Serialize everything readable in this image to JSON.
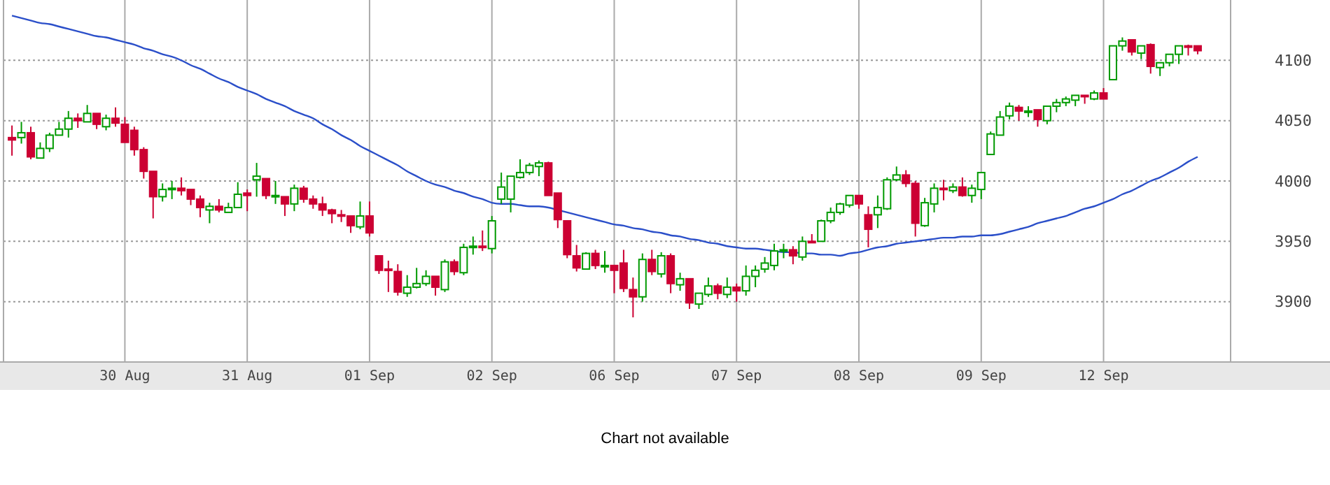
{
  "chart_data": {
    "type": "candlestick",
    "categories": [
      null,
      null,
      null,
      null,
      null,
      null,
      null,
      null,
      null,
      null,
      null,
      null,
      "30 Aug",
      null,
      null,
      null,
      null,
      null,
      null,
      null,
      null,
      null,
      null,
      null,
      null,
      "31 Aug",
      null,
      null,
      null,
      null,
      null,
      null,
      null,
      null,
      null,
      null,
      null,
      null,
      "01 Sep",
      null,
      null,
      null,
      null,
      null,
      null,
      null,
      null,
      null,
      null,
      null,
      null,
      "02 Sep",
      null,
      null,
      null,
      null,
      null,
      null,
      null,
      null,
      null,
      null,
      null,
      null,
      "06 Sep",
      null,
      null,
      null,
      null,
      null,
      null,
      null,
      null,
      null,
      null,
      null,
      null,
      "07 Sep",
      null,
      null,
      null,
      null,
      null,
      null,
      null,
      null,
      null,
      null,
      null,
      null,
      "08 Sep",
      null,
      null,
      null,
      null,
      null,
      null,
      null,
      null,
      null,
      null,
      null,
      null,
      "09 Sep",
      null,
      null,
      null,
      null,
      null,
      null,
      null,
      null,
      null,
      null,
      null,
      null,
      "12 Sep",
      null,
      null,
      null,
      null,
      null,
      null,
      null,
      null,
      null,
      null
    ],
    "ohlc": [
      [
        4036,
        4046,
        4021,
        4034
      ],
      [
        4036,
        4049,
        4031,
        4040
      ],
      [
        4040,
        4045,
        4018,
        4020
      ],
      [
        4019,
        4032,
        4019,
        4027
      ],
      [
        4027,
        4040,
        4024,
        4038
      ],
      [
        4038,
        4049,
        4038,
        4043
      ],
      [
        4043,
        4058,
        4036,
        4052
      ],
      [
        4052,
        4056,
        4044,
        4050
      ],
      [
        4049,
        4063,
        4049,
        4056
      ],
      [
        4056,
        4056,
        4043,
        4047
      ],
      [
        4045,
        4055,
        4042,
        4052
      ],
      [
        4052,
        4061,
        4045,
        4048
      ],
      [
        4047,
        4053,
        4032,
        4032
      ],
      [
        4042,
        4045,
        4021,
        4026
      ],
      [
        4026,
        4028,
        4002,
        4008
      ],
      [
        4008,
        4008,
        3969,
        3987
      ],
      [
        3987,
        3998,
        3983,
        3993
      ],
      [
        3993,
        4000,
        3985,
        3994
      ],
      [
        3994,
        4003,
        3988,
        3992
      ],
      [
        3993,
        3993,
        3980,
        3985
      ],
      [
        3985,
        3988,
        3970,
        3978
      ],
      [
        3976,
        3982,
        3965,
        3979
      ],
      [
        3979,
        3985,
        3974,
        3976
      ],
      [
        3974,
        3982,
        3974,
        3978
      ],
      [
        3978,
        3999,
        3978,
        3989
      ],
      [
        3990,
        3993,
        3975,
        3988
      ],
      [
        4001,
        4015,
        3987,
        4004
      ],
      [
        4002,
        4002,
        3985,
        3988
      ],
      [
        3987,
        4000,
        3981,
        3988
      ],
      [
        3987,
        3987,
        3971,
        3981
      ],
      [
        3981,
        3997,
        3975,
        3994
      ],
      [
        3994,
        3996,
        3982,
        3985
      ],
      [
        3985,
        3988,
        3977,
        3981
      ],
      [
        3981,
        3987,
        3971,
        3976
      ],
      [
        3976,
        3977,
        3965,
        3973
      ],
      [
        3972,
        3976,
        3966,
        3971
      ],
      [
        3971,
        3971,
        3957,
        3963
      ],
      [
        3962,
        3983,
        3960,
        3971
      ],
      [
        3971,
        3983,
        3954,
        3957
      ],
      [
        3938,
        3938,
        3923,
        3926
      ],
      [
        3927,
        3934,
        3908,
        3926
      ],
      [
        3925,
        3931,
        3905,
        3908
      ],
      [
        3907,
        3922,
        3904,
        3912
      ],
      [
        3912,
        3928,
        3911,
        3915
      ],
      [
        3915,
        3926,
        3913,
        3921
      ],
      [
        3921,
        3921,
        3905,
        3912
      ],
      [
        3910,
        3935,
        3908,
        3933
      ],
      [
        3933,
        3935,
        3922,
        3925
      ],
      [
        3924,
        3948,
        3922,
        3945
      ],
      [
        3945,
        3954,
        3939,
        3946
      ],
      [
        3946,
        3959,
        3942,
        3945
      ],
      [
        3944,
        3971,
        3940,
        3967
      ],
      [
        3985,
        4007,
        3981,
        3995
      ],
      [
        3985,
        4004,
        3974,
        4004
      ],
      [
        4003,
        4018,
        4002,
        4007
      ],
      [
        4007,
        4015,
        4005,
        4013
      ],
      [
        4012,
        4017,
        4004,
        4015
      ],
      [
        4015,
        4016,
        3988,
        3988
      ],
      [
        3990,
        3990,
        3961,
        3968
      ],
      [
        3967,
        3967,
        3936,
        3939
      ],
      [
        3938,
        3947,
        3925,
        3928
      ],
      [
        3927,
        3941,
        3927,
        3940
      ],
      [
        3940,
        3943,
        3927,
        3930
      ],
      [
        3929,
        3942,
        3924,
        3930
      ],
      [
        3930,
        3930,
        3907,
        3926
      ],
      [
        3932,
        3943,
        3908,
        3911
      ],
      [
        3910,
        3920,
        3887,
        3904
      ],
      [
        3904,
        3940,
        3900,
        3935
      ],
      [
        3935,
        3943,
        3922,
        3925
      ],
      [
        3923,
        3941,
        3920,
        3938
      ],
      [
        3938,
        3940,
        3907,
        3915
      ],
      [
        3914,
        3924,
        3909,
        3919
      ],
      [
        3919,
        3919,
        3894,
        3899
      ],
      [
        3898,
        3907,
        3894,
        3907
      ],
      [
        3906,
        3920,
        3904,
        3913
      ],
      [
        3913,
        3915,
        3902,
        3907
      ],
      [
        3906,
        3920,
        3903,
        3912
      ],
      [
        3912,
        3915,
        3900,
        3909
      ],
      [
        3909,
        3930,
        3905,
        3921
      ],
      [
        3921,
        3930,
        3912,
        3926
      ],
      [
        3927,
        3937,
        3924,
        3932
      ],
      [
        3930,
        3948,
        3926,
        3942
      ],
      [
        3942,
        3948,
        3936,
        3943
      ],
      [
        3943,
        3946,
        3931,
        3938
      ],
      [
        3937,
        3954,
        3934,
        3950
      ],
      [
        3950,
        3956,
        3949,
        3949
      ],
      [
        3950,
        3968,
        3950,
        3967
      ],
      [
        3967,
        3978,
        3965,
        3974
      ],
      [
        3974,
        3982,
        3972,
        3981
      ],
      [
        3980,
        3988,
        3978,
        3988
      ],
      [
        3988,
        3988,
        3977,
        3981
      ],
      [
        3972,
        3979,
        3945,
        3960
      ],
      [
        3972,
        3988,
        3961,
        3978
      ],
      [
        3977,
        4003,
        3976,
        4001
      ],
      [
        4001,
        4012,
        4000,
        4005
      ],
      [
        4005,
        4009,
        3995,
        3998
      ],
      [
        3998,
        4000,
        3954,
        3965
      ],
      [
        3963,
        3986,
        3962,
        3982
      ],
      [
        3981,
        3998,
        3974,
        3994
      ],
      [
        3994,
        4001,
        3984,
        3993
      ],
      [
        3992,
        3998,
        3990,
        3995
      ],
      [
        3995,
        4003,
        3987,
        3988
      ],
      [
        3988,
        3997,
        3982,
        3994
      ],
      [
        3993,
        4007,
        3985,
        4007
      ],
      [
        4022,
        4041,
        4022,
        4039
      ],
      [
        4038,
        4058,
        4038,
        4053
      ],
      [
        4054,
        4065,
        4051,
        4062
      ],
      [
        4061,
        4063,
        4050,
        4058
      ],
      [
        4057,
        4062,
        4053,
        4058
      ],
      [
        4059,
        4059,
        4045,
        4051
      ],
      [
        4050,
        4062,
        4047,
        4062
      ],
      [
        4062,
        4068,
        4057,
        4065
      ],
      [
        4065,
        4070,
        4062,
        4068
      ],
      [
        4067,
        4071,
        4062,
        4071
      ],
      [
        4071,
        4071,
        4064,
        4070
      ],
      [
        4068,
        4075,
        4067,
        4073
      ],
      [
        4073,
        4077,
        4068,
        4068
      ],
      [
        4084,
        4112,
        4084,
        4112
      ],
      [
        4112,
        4119,
        4108,
        4116
      ],
      [
        4117,
        4117,
        4104,
        4107
      ],
      [
        4106,
        4112,
        4101,
        4112
      ],
      [
        4113,
        4114,
        4089,
        4095
      ],
      [
        4094,
        4098,
        4087,
        4098
      ],
      [
        4098,
        4105,
        4095,
        4105
      ],
      [
        4105,
        4112,
        4097,
        4112
      ],
      [
        4112,
        4113,
        4104,
        4111
      ],
      [
        4112,
        4112,
        4105,
        4108
      ]
    ],
    "colors": [
      "#cc0033",
      "#009a00",
      "#cc0033",
      "#009a00",
      "#009a00",
      "#009a00",
      "#009a00",
      "#cc0033",
      "#009a00",
      "#cc0033",
      "#009a00",
      "#cc0033",
      "#cc0033",
      "#cc0033",
      "#cc0033",
      "#cc0033",
      "#009a00",
      "#009a00",
      "#cc0033",
      "#cc0033",
      "#cc0033",
      "#009a00",
      "#cc0033",
      "#009a00",
      "#009a00",
      "#cc0033",
      "#009a00",
      "#cc0033",
      "#009a00",
      "#cc0033",
      "#009a00",
      "#cc0033",
      "#cc0033",
      "#cc0033",
      "#cc0033",
      "#cc0033",
      "#cc0033",
      "#009a00",
      "#cc0033",
      "#cc0033",
      "#cc0033",
      "#cc0033",
      "#009a00",
      "#009a00",
      "#009a00",
      "#cc0033",
      "#009a00",
      "#cc0033",
      "#009a00",
      "#009a00",
      "#cc0033",
      "#009a00",
      "#009a00",
      "#009a00",
      "#009a00",
      "#009a00",
      "#009a00",
      "#cc0033",
      "#cc0033",
      "#cc0033",
      "#cc0033",
      "#009a00",
      "#cc0033",
      "#009a00",
      "#cc0033",
      "#cc0033",
      "#cc0033",
      "#009a00",
      "#cc0033",
      "#009a00",
      "#cc0033",
      "#009a00",
      "#cc0033",
      "#009a00",
      "#009a00",
      "#cc0033",
      "#009a00",
      "#cc0033",
      "#009a00",
      "#009a00",
      "#009a00",
      "#009a00",
      "#009a00",
      "#cc0033",
      "#009a00",
      "#cc0033",
      "#009a00",
      "#009a00",
      "#009a00",
      "#009a00",
      "#cc0033",
      "#cc0033",
      "#009a00",
      "#009a00",
      "#009a00",
      "#cc0033",
      "#cc0033",
      "#009a00",
      "#009a00",
      "#cc0033",
      "#009a00",
      "#cc0033",
      "#009a00",
      "#009a00",
      "#009a00",
      "#009a00",
      "#009a00",
      "#cc0033",
      "#009a00",
      "#cc0033",
      "#009a00",
      "#009a00",
      "#009a00",
      "#009a00",
      "#cc0033",
      "#009a00",
      "#cc0033",
      "#009a00",
      "#009a00",
      "#cc0033",
      "#009a00",
      "#cc0033",
      "#009a00",
      "#009a00",
      "#009a00",
      "#cc0033",
      "#cc0033"
    ],
    "series": [
      {
        "type": "line",
        "color": "#2b4fc9",
        "values": [
          4137,
          4135,
          4133,
          4131,
          4130,
          4128,
          4126,
          4124,
          4122,
          4120,
          4119,
          4117,
          4115,
          4113,
          4110,
          4108,
          4105,
          4103,
          4100,
          4096,
          4093,
          4089,
          4085,
          4082,
          4078,
          4075,
          4072,
          4068,
          4065,
          4062,
          4058,
          4055,
          4052,
          4047,
          4043,
          4038,
          4034,
          4029,
          4025,
          4021,
          4017,
          4013,
          4008,
          4004,
          4000,
          3997,
          3995,
          3992,
          3990,
          3987,
          3985,
          3982,
          3981,
          3981,
          3980,
          3979,
          3979,
          3978,
          3976,
          3974,
          3972,
          3970,
          3968,
          3966,
          3964,
          3963,
          3961,
          3960,
          3958,
          3957,
          3955,
          3954,
          3952,
          3951,
          3949,
          3948,
          3946,
          3945,
          3944,
          3944,
          3943,
          3942,
          3941,
          3941,
          3940,
          3940,
          3939,
          3939,
          3938,
          3940,
          3941,
          3943,
          3945,
          3946,
          3948,
          3949,
          3950,
          3951,
          3952,
          3953,
          3953,
          3954,
          3954,
          3955,
          3955,
          3956,
          3958,
          3960,
          3962,
          3965,
          3967,
          3969,
          3971,
          3974,
          3977,
          3979,
          3982,
          3985,
          3989,
          3992,
          3996,
          4000,
          4003,
          4007,
          4011,
          4016,
          4020
        ]
      }
    ],
    "ylim": [
      3850,
      4150
    ],
    "yticks": [
      3900,
      3950,
      4000,
      4050,
      4100
    ],
    "grid": true,
    "annotations": [
      "Chart not available"
    ]
  }
}
